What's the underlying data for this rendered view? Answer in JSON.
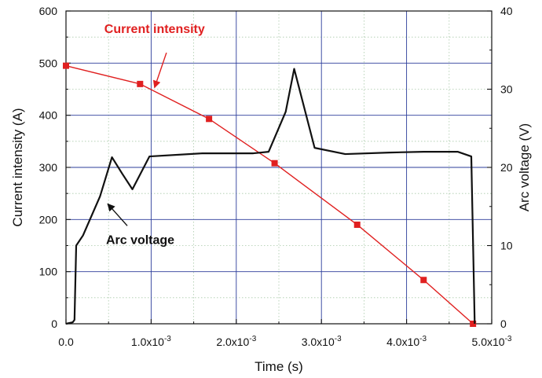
{
  "chart_data": {
    "type": "line",
    "xlabel": "Time (s)",
    "ylabel_left": "Current intensity (A)",
    "ylabel_right": "Arc voltage (V)",
    "xlim": [
      0,
      0.005
    ],
    "ylim_left": [
      0,
      600
    ],
    "ylim_right": [
      0,
      40
    ],
    "x_ticks": [
      0,
      0.001,
      0.002,
      0.003,
      0.004,
      0.005
    ],
    "x_tick_labels": [
      {
        "base": "0.0",
        "exp": ""
      },
      {
        "base": "1.0x10",
        "exp": "-3"
      },
      {
        "base": "2.0x10",
        "exp": "-3"
      },
      {
        "base": "3.0x10",
        "exp": "-3"
      },
      {
        "base": "4.0x10",
        "exp": "-3"
      },
      {
        "base": "5.0x10",
        "exp": "-3"
      }
    ],
    "y_left_ticks": [
      0,
      100,
      200,
      300,
      400,
      500,
      600
    ],
    "y_right_ticks": [
      0,
      10,
      20,
      30,
      40
    ],
    "grid": true,
    "series": [
      {
        "name": "Current intensity",
        "axis": "left",
        "color": "#e02020",
        "marker": "square",
        "x": [
          0.0,
          0.00087,
          0.00168,
          0.00245,
          0.00342,
          0.0042,
          0.00478
        ],
        "y": [
          495,
          460,
          393,
          308,
          190,
          84,
          0
        ]
      },
      {
        "name": "Arc voltage",
        "axis": "right",
        "color": "#111111",
        "marker": "none",
        "x": [
          0.0,
          8e-05,
          0.0001,
          0.00012,
          0.0002,
          0.0004,
          0.00054,
          0.00066,
          0.00078,
          0.00098,
          0.0016,
          0.0022,
          0.00238,
          0.00258,
          0.00268,
          0.00292,
          0.00328,
          0.0038,
          0.0042,
          0.0046,
          0.00476,
          0.0048
        ],
        "y": [
          0,
          0.2,
          0.5,
          10,
          11.3,
          16.3,
          21.3,
          19.2,
          17.2,
          21.4,
          21.8,
          21.8,
          22.0,
          27.1,
          32.6,
          22.5,
          21.7,
          21.9,
          22.0,
          22.0,
          21.4,
          0
        ]
      }
    ],
    "annotations": [
      {
        "text": "Current intensity",
        "color": "#e02020",
        "x": 0.00045,
        "y_left": 558,
        "arrow_from": [
          0.00118,
          520
        ],
        "arrow_to": [
          0.00104,
          453
        ]
      },
      {
        "text": "Arc voltage",
        "color": "#111111",
        "x": 0.00047,
        "y_left": 153,
        "arrow_from": [
          0.00072,
          188
        ],
        "arrow_to": [
          0.00049,
          230
        ]
      }
    ]
  }
}
